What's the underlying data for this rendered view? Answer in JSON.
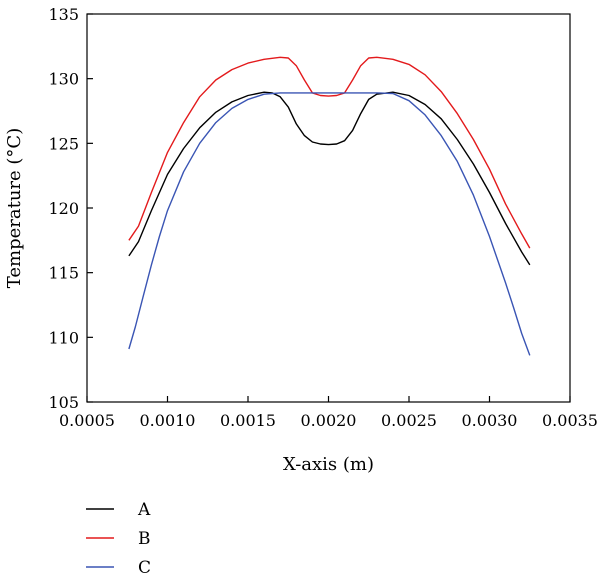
{
  "chart_data": {
    "type": "line",
    "xlabel": "X-axis (m)",
    "ylabel": "Temperature (°C)",
    "xlim": [
      0.0005,
      0.0035
    ],
    "ylim": [
      105,
      135
    ],
    "x_ticks": [
      "0.0005",
      "0.0010",
      "0.0015",
      "0.0020",
      "0.0025",
      "0.0030",
      "0.0035"
    ],
    "y_ticks": [
      "105",
      "110",
      "115",
      "120",
      "125",
      "130",
      "135"
    ],
    "grid": false,
    "legend_position": "bottom-left",
    "series": [
      {
        "name": "A",
        "color": "#000000",
        "points": [
          [
            0.00076,
            116.3
          ],
          [
            0.00082,
            117.4
          ],
          [
            0.0009,
            119.8
          ],
          [
            0.001,
            122.6
          ],
          [
            0.0011,
            124.6
          ],
          [
            0.0012,
            126.2
          ],
          [
            0.0013,
            127.4
          ],
          [
            0.0014,
            128.2
          ],
          [
            0.0015,
            128.7
          ],
          [
            0.0016,
            128.95
          ],
          [
            0.00165,
            128.9
          ],
          [
            0.0017,
            128.6
          ],
          [
            0.00175,
            127.8
          ],
          [
            0.0018,
            126.5
          ],
          [
            0.00185,
            125.6
          ],
          [
            0.0019,
            125.1
          ],
          [
            0.00195,
            124.95
          ],
          [
            0.002,
            124.9
          ],
          [
            0.00205,
            124.95
          ],
          [
            0.0021,
            125.2
          ],
          [
            0.00215,
            126.0
          ],
          [
            0.0022,
            127.3
          ],
          [
            0.00225,
            128.4
          ],
          [
            0.0023,
            128.8
          ],
          [
            0.0024,
            128.95
          ],
          [
            0.0025,
            128.7
          ],
          [
            0.0026,
            128.0
          ],
          [
            0.0027,
            126.9
          ],
          [
            0.0028,
            125.3
          ],
          [
            0.0029,
            123.4
          ],
          [
            0.003,
            121.2
          ],
          [
            0.0031,
            118.8
          ],
          [
            0.0032,
            116.6
          ],
          [
            0.00325,
            115.6
          ]
        ]
      },
      {
        "name": "B",
        "color": "#e31a1c",
        "points": [
          [
            0.00076,
            117.5
          ],
          [
            0.00082,
            118.6
          ],
          [
            0.0009,
            121.2
          ],
          [
            0.001,
            124.3
          ],
          [
            0.0011,
            126.6
          ],
          [
            0.0012,
            128.6
          ],
          [
            0.0013,
            129.9
          ],
          [
            0.0014,
            130.7
          ],
          [
            0.0015,
            131.2
          ],
          [
            0.0016,
            131.5
          ],
          [
            0.0017,
            131.65
          ],
          [
            0.00175,
            131.6
          ],
          [
            0.0018,
            131.0
          ],
          [
            0.00185,
            129.9
          ],
          [
            0.0019,
            128.9
          ],
          [
            0.00195,
            128.7
          ],
          [
            0.002,
            128.65
          ],
          [
            0.00205,
            128.7
          ],
          [
            0.0021,
            128.9
          ],
          [
            0.00215,
            129.9
          ],
          [
            0.0022,
            131.0
          ],
          [
            0.00225,
            131.6
          ],
          [
            0.0023,
            131.65
          ],
          [
            0.0024,
            131.5
          ],
          [
            0.0025,
            131.1
          ],
          [
            0.0026,
            130.3
          ],
          [
            0.0027,
            129.0
          ],
          [
            0.0028,
            127.3
          ],
          [
            0.0029,
            125.3
          ],
          [
            0.003,
            123.0
          ],
          [
            0.0031,
            120.3
          ],
          [
            0.0032,
            118.0
          ],
          [
            0.00325,
            116.9
          ]
        ]
      },
      {
        "name": "C",
        "color": "#3a55b4",
        "points": [
          [
            0.00076,
            109.1
          ],
          [
            0.0008,
            110.8
          ],
          [
            0.00085,
            113.2
          ],
          [
            0.0009,
            115.6
          ],
          [
            0.00095,
            117.8
          ],
          [
            0.001,
            119.8
          ],
          [
            0.0011,
            122.8
          ],
          [
            0.0012,
            125.0
          ],
          [
            0.0013,
            126.6
          ],
          [
            0.0014,
            127.7
          ],
          [
            0.0015,
            128.4
          ],
          [
            0.0016,
            128.8
          ],
          [
            0.0017,
            128.9
          ],
          [
            0.0018,
            128.9
          ],
          [
            0.0019,
            128.9
          ],
          [
            0.002,
            128.9
          ],
          [
            0.0021,
            128.9
          ],
          [
            0.0022,
            128.9
          ],
          [
            0.0023,
            128.9
          ],
          [
            0.0024,
            128.85
          ],
          [
            0.0025,
            128.3
          ],
          [
            0.0026,
            127.2
          ],
          [
            0.0027,
            125.6
          ],
          [
            0.0028,
            123.6
          ],
          [
            0.0029,
            121.0
          ],
          [
            0.003,
            117.8
          ],
          [
            0.0031,
            114.2
          ],
          [
            0.00315,
            112.3
          ],
          [
            0.0032,
            110.3
          ],
          [
            0.00325,
            108.6
          ]
        ]
      }
    ]
  }
}
